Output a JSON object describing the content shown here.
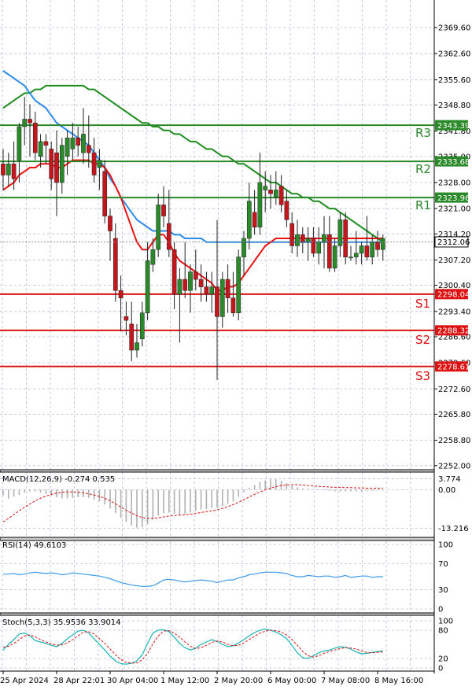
{
  "colors": {
    "background": "#ffffff",
    "grid": "#b8bed8",
    "bull": "#2a8a2a",
    "bear": "#c4161c",
    "resistance": "#2a8a2a",
    "support": "#dd1111",
    "ma_fast": "#ee1111",
    "ma_mid": "#2b8be8",
    "ma_slow": "#1e8c1e",
    "macd_hist": "#b0b0b0",
    "macd_signal": "#dd1111",
    "rsi_line": "#3d9be9",
    "stoch_k": "#18b4b4",
    "stoch_d": "#dd1111"
  },
  "chart_data": [
    {
      "type": "candlestick",
      "panel": "price",
      "ylim": [
        2250.9,
        2377.0
      ],
      "y_ticks": [
        "2369.60",
        "2362.60",
        "2355.60",
        "2348.80",
        "2341.80",
        "2335.00",
        "2328.00",
        "2321.00",
        "2314.20",
        "2307.20",
        "2300.40",
        "2293.40",
        "2286.60",
        "2279.60",
        "2272.60",
        "2265.80",
        "2258.80",
        "2252.00"
      ],
      "y_tick_values": [
        2369.6,
        2362.6,
        2355.6,
        2348.8,
        2341.8,
        2335.0,
        2328.0,
        2321.0,
        2314.2,
        2307.2,
        2300.4,
        2293.4,
        2286.6,
        2279.6,
        2272.6,
        2265.8,
        2258.8,
        2252.0
      ],
      "x_ticks": [
        "25 Apr 2024",
        "28 Apr 22:01",
        "30 Apr 04:00",
        "1 May 12:00",
        "2 May 20:00",
        "6 May 00:00",
        "7 May 08:00",
        "8 May 16:00"
      ],
      "x_tick_index": [
        0,
        10,
        20,
        30,
        40,
        50,
        60,
        70
      ],
      "current_price": "2312.06",
      "levels": [
        {
          "name": "R3",
          "value": 2343.39,
          "label": "2343.39",
          "kind": "resistance"
        },
        {
          "name": "R2",
          "value": 2333.68,
          "label": "2333.68",
          "kind": "resistance"
        },
        {
          "name": "R1",
          "value": 2323.96,
          "label": "2323.96",
          "kind": "resistance"
        },
        {
          "name": "S1",
          "value": 2298.04,
          "label": "2298.04",
          "kind": "support"
        },
        {
          "name": "S2",
          "value": 2288.32,
          "label": "2288.32",
          "kind": "support"
        },
        {
          "name": "S3",
          "value": 2278.61,
          "label": "2278.61",
          "kind": "support"
        }
      ],
      "candles": [
        {
          "o": 2333,
          "h": 2337,
          "l": 2326,
          "c": 2330
        },
        {
          "o": 2330,
          "h": 2336,
          "l": 2327,
          "c": 2333
        },
        {
          "o": 2333,
          "h": 2339,
          "l": 2326,
          "c": 2329
        },
        {
          "o": 2334,
          "h": 2344,
          "l": 2328,
          "c": 2343
        },
        {
          "o": 2343,
          "h": 2351,
          "l": 2338,
          "c": 2345
        },
        {
          "o": 2345,
          "h": 2349,
          "l": 2335,
          "c": 2344
        },
        {
          "o": 2344,
          "h": 2347,
          "l": 2334,
          "c": 2336
        },
        {
          "o": 2335,
          "h": 2341,
          "l": 2332,
          "c": 2339
        },
        {
          "o": 2339,
          "h": 2341,
          "l": 2333,
          "c": 2338
        },
        {
          "o": 2337,
          "h": 2339,
          "l": 2326,
          "c": 2329
        },
        {
          "o": 2336,
          "h": 2342,
          "l": 2319,
          "c": 2328
        },
        {
          "o": 2328,
          "h": 2340,
          "l": 2325,
          "c": 2338
        },
        {
          "o": 2335,
          "h": 2342,
          "l": 2330,
          "c": 2340
        },
        {
          "o": 2337,
          "h": 2344,
          "l": 2334,
          "c": 2340
        },
        {
          "o": 2340,
          "h": 2343,
          "l": 2335,
          "c": 2338
        },
        {
          "o": 2336,
          "h": 2348,
          "l": 2333,
          "c": 2341
        },
        {
          "o": 2338,
          "h": 2346,
          "l": 2332,
          "c": 2336
        },
        {
          "o": 2336,
          "h": 2340,
          "l": 2328,
          "c": 2330
        },
        {
          "o": 2332,
          "h": 2337,
          "l": 2326,
          "c": 2334
        },
        {
          "o": 2331,
          "h": 2334,
          "l": 2317,
          "c": 2319
        },
        {
          "o": 2319,
          "h": 2321,
          "l": 2307,
          "c": 2315
        },
        {
          "o": 2313,
          "h": 2317,
          "l": 2296,
          "c": 2299
        },
        {
          "o": 2299,
          "h": 2303,
          "l": 2288,
          "c": 2297
        },
        {
          "o": 2292,
          "h": 2296,
          "l": 2287,
          "c": 2291
        },
        {
          "o": 2290,
          "h": 2296,
          "l": 2280,
          "c": 2283
        },
        {
          "o": 2283,
          "h": 2290,
          "l": 2281,
          "c": 2285
        },
        {
          "o": 2286,
          "h": 2296,
          "l": 2284,
          "c": 2293
        },
        {
          "o": 2293,
          "h": 2312,
          "l": 2291,
          "c": 2307
        },
        {
          "o": 2306,
          "h": 2313,
          "l": 2304,
          "c": 2310
        },
        {
          "o": 2310,
          "h": 2325,
          "l": 2308,
          "c": 2322
        },
        {
          "o": 2322,
          "h": 2327,
          "l": 2316,
          "c": 2319
        },
        {
          "o": 2317,
          "h": 2326,
          "l": 2308,
          "c": 2310
        },
        {
          "o": 2310,
          "h": 2312,
          "l": 2294,
          "c": 2298
        },
        {
          "o": 2298,
          "h": 2305,
          "l": 2285,
          "c": 2302
        },
        {
          "o": 2302,
          "h": 2312,
          "l": 2297,
          "c": 2299
        },
        {
          "o": 2299,
          "h": 2306,
          "l": 2293,
          "c": 2304
        },
        {
          "o": 2304,
          "h": 2310,
          "l": 2299,
          "c": 2302
        },
        {
          "o": 2302,
          "h": 2306,
          "l": 2296,
          "c": 2300
        },
        {
          "o": 2300,
          "h": 2304,
          "l": 2296,
          "c": 2298
        },
        {
          "o": 2298,
          "h": 2304,
          "l": 2293,
          "c": 2300
        },
        {
          "o": 2300,
          "h": 2318,
          "l": 2275,
          "c": 2292
        },
        {
          "o": 2292,
          "h": 2304,
          "l": 2289,
          "c": 2302
        },
        {
          "o": 2302,
          "h": 2306,
          "l": 2293,
          "c": 2297
        },
        {
          "o": 2297,
          "h": 2304,
          "l": 2292,
          "c": 2293
        },
        {
          "o": 2293,
          "h": 2310,
          "l": 2291,
          "c": 2308
        },
        {
          "o": 2308,
          "h": 2315,
          "l": 2303,
          "c": 2313
        },
        {
          "o": 2313,
          "h": 2328,
          "l": 2310,
          "c": 2323
        },
        {
          "o": 2320,
          "h": 2326,
          "l": 2314,
          "c": 2316
        },
        {
          "o": 2316,
          "h": 2336,
          "l": 2314,
          "c": 2328
        },
        {
          "o": 2326,
          "h": 2331,
          "l": 2320,
          "c": 2327
        },
        {
          "o": 2326,
          "h": 2330,
          "l": 2321,
          "c": 2325
        },
        {
          "o": 2324,
          "h": 2331,
          "l": 2322,
          "c": 2326
        },
        {
          "o": 2327,
          "h": 2330,
          "l": 2320,
          "c": 2322
        },
        {
          "o": 2323,
          "h": 2326,
          "l": 2316,
          "c": 2318
        },
        {
          "o": 2317,
          "h": 2320,
          "l": 2309,
          "c": 2311
        },
        {
          "o": 2311,
          "h": 2318,
          "l": 2308,
          "c": 2314
        },
        {
          "o": 2314,
          "h": 2316,
          "l": 2309,
          "c": 2312
        },
        {
          "o": 2312,
          "h": 2316,
          "l": 2307,
          "c": 2313
        },
        {
          "o": 2313,
          "h": 2316,
          "l": 2308,
          "c": 2309
        },
        {
          "o": 2309,
          "h": 2316,
          "l": 2306,
          "c": 2312
        },
        {
          "o": 2312,
          "h": 2319,
          "l": 2305,
          "c": 2314
        },
        {
          "o": 2314,
          "h": 2319,
          "l": 2304,
          "c": 2305
        },
        {
          "o": 2305,
          "h": 2313,
          "l": 2304,
          "c": 2311
        },
        {
          "o": 2311,
          "h": 2320,
          "l": 2308,
          "c": 2318
        },
        {
          "o": 2318,
          "h": 2320,
          "l": 2306,
          "c": 2308
        },
        {
          "o": 2308,
          "h": 2311,
          "l": 2307,
          "c": 2308
        },
        {
          "o": 2308,
          "h": 2315,
          "l": 2306,
          "c": 2309
        },
        {
          "o": 2309,
          "h": 2312,
          "l": 2306,
          "c": 2311
        },
        {
          "o": 2311,
          "h": 2319,
          "l": 2307,
          "c": 2308
        },
        {
          "o": 2308,
          "h": 2314,
          "l": 2306,
          "c": 2312
        },
        {
          "o": 2312,
          "h": 2315,
          "l": 2308,
          "c": 2310
        },
        {
          "o": 2310,
          "h": 2314,
          "l": 2307,
          "c": 2313
        }
      ],
      "ma_fast": [
        2326,
        2327,
        2328,
        2330,
        2331,
        2332,
        2332,
        2333,
        2333,
        2333,
        2332,
        2332,
        2333,
        2334,
        2334,
        2334,
        2334,
        2333,
        2333,
        2332,
        2330,
        2327,
        2324,
        2320,
        2316,
        2312,
        2310,
        2310,
        2312,
        2314,
        2314,
        2312,
        2309,
        2307,
        2306,
        2305,
        2304,
        2303,
        2302,
        2301,
        2299,
        2299,
        2300,
        2300,
        2301,
        2303,
        2305,
        2307,
        2309,
        2311,
        2312,
        2313,
        2313,
        2313,
        2313,
        2313,
        2313,
        2313,
        2313,
        2313,
        2313,
        2313,
        2313,
        2313,
        2313,
        2313,
        2313,
        2313,
        2313,
        2313,
        2313,
        2313
      ],
      "ma_mid": [
        2358,
        2357,
        2356,
        2355,
        2354,
        2352,
        2350,
        2349,
        2348,
        2346,
        2344,
        2343,
        2342,
        2341,
        2340,
        2339,
        2338,
        2336,
        2334,
        2332,
        2329,
        2327,
        2324,
        2322,
        2320,
        2318,
        2317,
        2316,
        2315,
        2315,
        2315,
        2315,
        2314,
        2314,
        2313,
        2313,
        2313,
        2313,
        2312,
        2312,
        2312,
        2312,
        2312,
        2312,
        2312,
        2312,
        2312,
        2312,
        2312,
        2312,
        2312,
        2312,
        2312,
        2312,
        2312,
        2312,
        2312,
        2312,
        2312,
        2312,
        2312,
        2312,
        2312,
        2312,
        2312,
        2312,
        2312,
        2312,
        2312,
        2312,
        2312,
        2312
      ],
      "ma_slow": [
        2348,
        2349,
        2350,
        2351,
        2352,
        2352,
        2353,
        2353,
        2354,
        2354,
        2354,
        2354,
        2354,
        2354,
        2354,
        2354,
        2353,
        2353,
        2352,
        2351,
        2350,
        2349,
        2348,
        2347,
        2346,
        2345,
        2344,
        2344,
        2343,
        2343,
        2342,
        2342,
        2341,
        2341,
        2340,
        2339,
        2339,
        2338,
        2337,
        2337,
        2336,
        2335,
        2335,
        2334,
        2333,
        2333,
        2332,
        2331,
        2330,
        2329,
        2328,
        2328,
        2327,
        2326,
        2325,
        2325,
        2324,
        2324,
        2323,
        2323,
        2322,
        2321,
        2321,
        2320,
        2319,
        2318,
        2317,
        2316,
        2315,
        2314,
        2313,
        2312
      ]
    },
    {
      "type": "bar",
      "panel": "macd",
      "title": "MACD(12,26,9) -0.274 0.535",
      "ylim": [
        -16.0,
        6.0
      ],
      "y_ticks": [
        "3.774",
        "0.00",
        "-13.216"
      ],
      "y_tick_values": [
        3.774,
        0.0,
        -13.216
      ],
      "histogram": [
        -2.0,
        -3.0,
        -2.4,
        -1.8,
        -1.0,
        -0.6,
        -0.6,
        -1.0,
        -1.4,
        -2.0,
        -2.6,
        -3.0,
        -3.0,
        -2.8,
        -2.6,
        -2.6,
        -2.8,
        -3.4,
        -4.0,
        -5.0,
        -6.4,
        -8.0,
        -9.6,
        -11.0,
        -12.2,
        -13.0,
        -12.8,
        -11.8,
        -10.2,
        -8.8,
        -8.0,
        -7.8,
        -8.2,
        -8.6,
        -8.4,
        -7.8,
        -7.2,
        -6.8,
        -6.6,
        -6.2,
        -6.2,
        -5.6,
        -4.8,
        -4.0,
        -2.4,
        -0.8,
        0.6,
        1.6,
        2.6,
        3.2,
        3.6,
        3.6,
        3.0,
        2.2,
        1.4,
        0.8,
        0.4,
        0.3,
        0.1,
        -0.1,
        -0.2,
        -0.4,
        -0.6,
        -0.6,
        -0.6,
        -0.6,
        -0.6,
        -0.6,
        -0.5,
        -0.4,
        -0.3,
        -0.3
      ],
      "signal": [
        -11.0,
        -9.8,
        -8.5,
        -7.2,
        -6.0,
        -4.9,
        -3.8,
        -2.9,
        -2.2,
        -1.6,
        -1.2,
        -0.9,
        -0.8,
        -0.8,
        -0.9,
        -1.1,
        -1.4,
        -1.8,
        -2.3,
        -3.0,
        -3.8,
        -4.8,
        -5.9,
        -7.0,
        -8.0,
        -8.9,
        -9.5,
        -9.8,
        -9.8,
        -9.6,
        -9.3,
        -9.0,
        -8.8,
        -8.7,
        -8.6,
        -8.4,
        -8.1,
        -7.8,
        -7.5,
        -7.2,
        -6.9,
        -6.4,
        -5.8,
        -5.1,
        -4.3,
        -3.4,
        -2.5,
        -1.6,
        -0.8,
        -0.1,
        0.5,
        1.0,
        1.4,
        1.6,
        1.7,
        1.7,
        1.6,
        1.4,
        1.3,
        1.1,
        1.0,
        0.9,
        0.8,
        0.8,
        0.7,
        0.7,
        0.6,
        0.6,
        0.5,
        0.5,
        0.5,
        0.5
      ]
    },
    {
      "type": "line",
      "panel": "rsi",
      "title": "RSI(14) 49.6103",
      "ylim": [
        0,
        100
      ],
      "y_ticks": [
        "100",
        "70",
        "30",
        "0"
      ],
      "y_tick_values": [
        100,
        70,
        30,
        0
      ],
      "series": [
        {
          "values": [
            54,
            54,
            55,
            53,
            54,
            56,
            57,
            56,
            55,
            56,
            55,
            53,
            54,
            56,
            55,
            54,
            53,
            52,
            51,
            49,
            47,
            44,
            41,
            39,
            37,
            36,
            35,
            35,
            36,
            40,
            45,
            46,
            45,
            43,
            42,
            43,
            44,
            45,
            44,
            43,
            41,
            43,
            45,
            45,
            48,
            50,
            53,
            54,
            56,
            57,
            57,
            57,
            56,
            55,
            52,
            50,
            50,
            52,
            51,
            50,
            51,
            51,
            49,
            50,
            52,
            49,
            50,
            51,
            51,
            49,
            50,
            50
          ]
        }
      ]
    },
    {
      "type": "line",
      "panel": "stoch",
      "title": "Stoch(5,3,3) 35.9536 33.9014",
      "ylim": [
        0,
        100
      ],
      "y_ticks": [
        "100",
        "80",
        "20",
        "0"
      ],
      "y_tick_values": [
        100,
        80,
        20,
        0
      ],
      "series": [
        {
          "values": [
            38,
            50,
            60,
            72,
            74,
            68,
            58,
            55,
            52,
            48,
            45,
            52,
            62,
            70,
            78,
            80,
            74,
            62,
            50,
            38,
            25,
            15,
            9,
            8,
            10,
            15,
            28,
            52,
            74,
            80,
            81,
            77,
            65,
            52,
            43,
            38,
            42,
            50,
            55,
            60,
            56,
            50,
            45,
            47,
            53,
            60,
            68,
            75,
            80,
            82,
            80,
            76,
            70,
            62,
            48,
            32,
            22,
            20,
            26,
            32,
            36,
            38,
            42,
            45,
            44,
            40,
            34,
            30,
            31,
            33,
            35,
            36
          ]
        },
        {
          "values": [
            44,
            46,
            52,
            60,
            68,
            70,
            66,
            60,
            55,
            51,
            48,
            49,
            53,
            60,
            68,
            76,
            77,
            72,
            62,
            52,
            40,
            28,
            18,
            12,
            10,
            11,
            17,
            31,
            51,
            68,
            78,
            79,
            74,
            65,
            55,
            46,
            41,
            43,
            48,
            54,
            57,
            55,
            50,
            47,
            48,
            53,
            60,
            67,
            74,
            78,
            80,
            79,
            76,
            70,
            60,
            48,
            35,
            26,
            23,
            26,
            31,
            35,
            38,
            41,
            43,
            42,
            40,
            36,
            33,
            32,
            33,
            34
          ]
        }
      ]
    }
  ]
}
